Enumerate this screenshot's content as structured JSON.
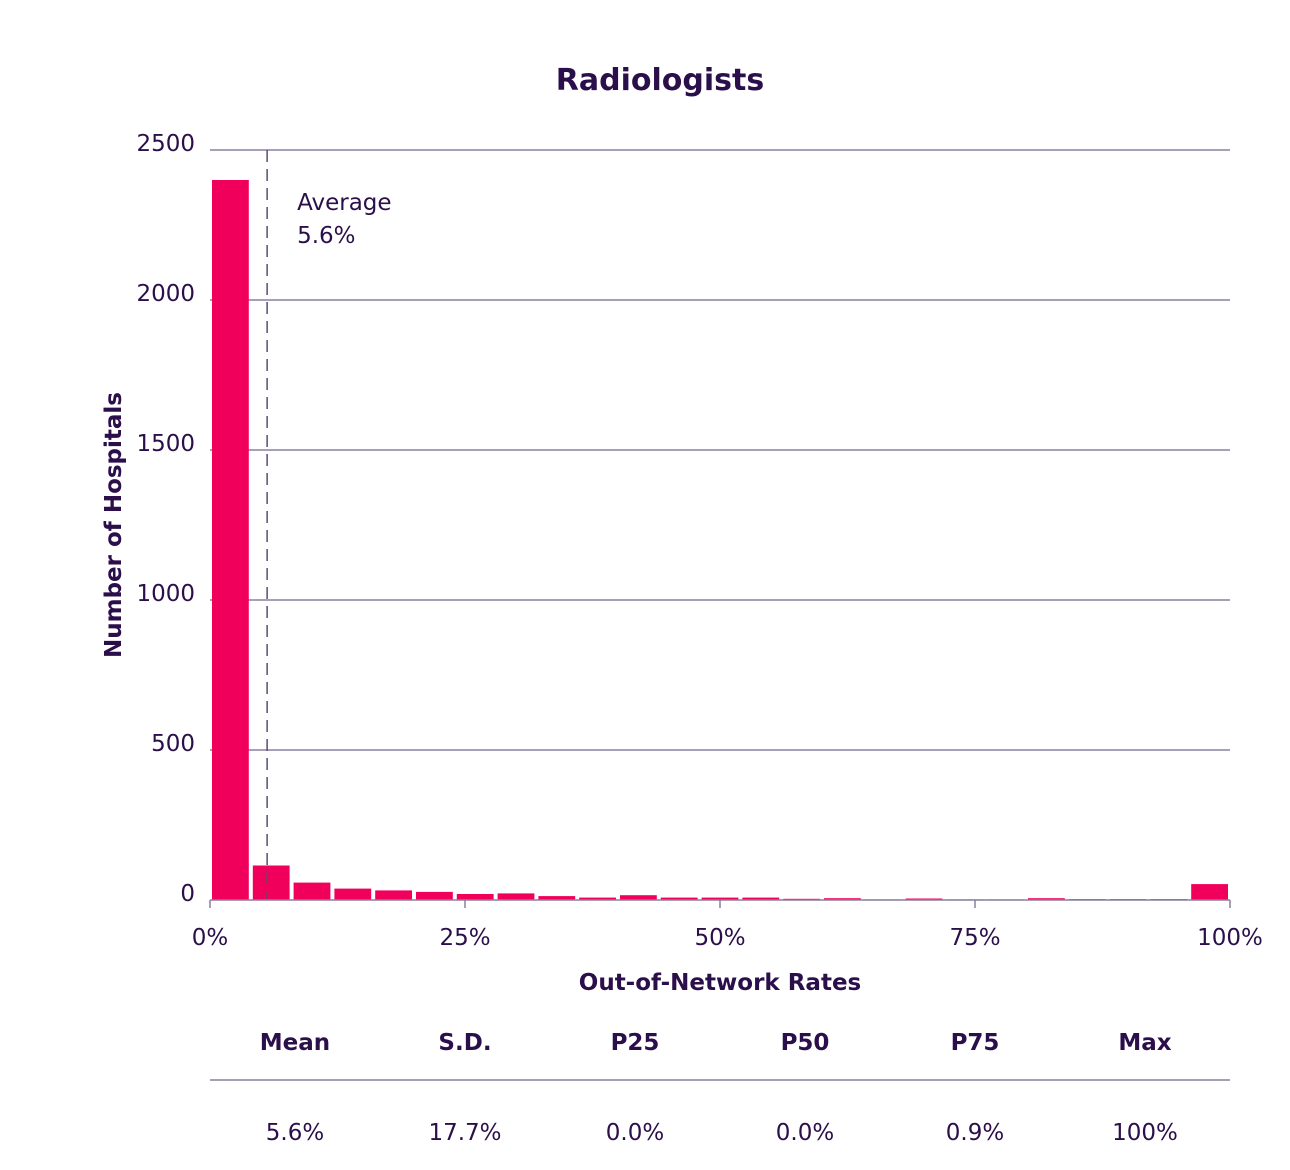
{
  "chart_data": {
    "type": "bar",
    "title": "Radiologists",
    "xlabel": "Out-of-Network Rates",
    "ylabel": "Number of Hospitals",
    "xlim": [
      0,
      100
    ],
    "ylim": [
      0,
      2500
    ],
    "x_ticks": [
      "0%",
      "25%",
      "50%",
      "75%",
      "100%"
    ],
    "y_ticks": [
      "0",
      "500",
      "1000",
      "1500",
      "2000",
      "2500"
    ],
    "grid": "horizontal",
    "bin_width": 4,
    "bins": [
      {
        "start": 0,
        "value": 2400
      },
      {
        "start": 4,
        "value": 115
      },
      {
        "start": 8,
        "value": 58
      },
      {
        "start": 12,
        "value": 38
      },
      {
        "start": 16,
        "value": 32
      },
      {
        "start": 20,
        "value": 27
      },
      {
        "start": 24,
        "value": 20
      },
      {
        "start": 28,
        "value": 22
      },
      {
        "start": 32,
        "value": 13
      },
      {
        "start": 36,
        "value": 8
      },
      {
        "start": 40,
        "value": 16
      },
      {
        "start": 44,
        "value": 8
      },
      {
        "start": 48,
        "value": 8
      },
      {
        "start": 52,
        "value": 8
      },
      {
        "start": 56,
        "value": 4
      },
      {
        "start": 60,
        "value": 6
      },
      {
        "start": 64,
        "value": 2
      },
      {
        "start": 68,
        "value": 5
      },
      {
        "start": 72,
        "value": 2
      },
      {
        "start": 76,
        "value": 2
      },
      {
        "start": 80,
        "value": 6
      },
      {
        "start": 84,
        "value": 3
      },
      {
        "start": 88,
        "value": 3
      },
      {
        "start": 92,
        "value": 3
      },
      {
        "start": 96,
        "value": 53
      }
    ],
    "average_line": {
      "x": 5.6,
      "label": "Average",
      "value_label": "5.6%"
    },
    "colors": {
      "bar": "#f0005a",
      "text": "#2b0f4a",
      "grid": "#8a7fa0",
      "dashed": "#5a4d70"
    }
  },
  "stats": {
    "headers": [
      "Mean",
      "S.D.",
      "P25",
      "P50",
      "P75",
      "Max"
    ],
    "values": [
      "5.6%",
      "17.7%",
      "0.0%",
      "0.0%",
      "0.9%",
      "100%"
    ]
  }
}
